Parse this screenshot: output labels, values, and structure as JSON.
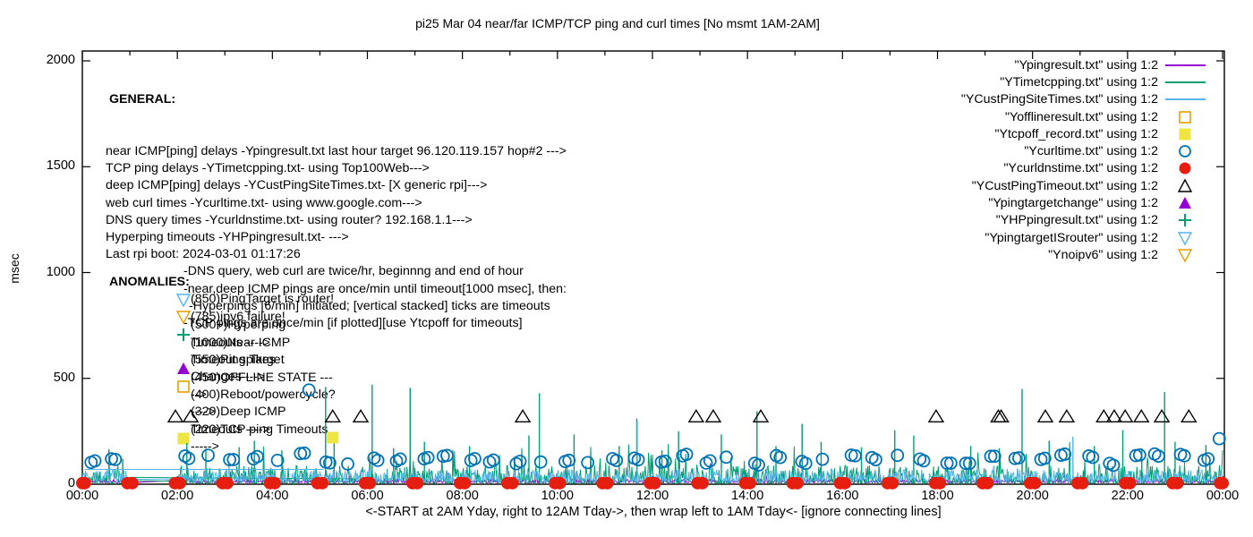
{
  "title": "pi25 Mar 04  near/far ICMP/TCP ping and curl times [No msmt 1AM-2AM]",
  "ylabel": "msec",
  "bottom_note": "<-START at 2AM Yday, right to 12AM Tday->, then wrap left to 1AM Tday<- [ignore connecting lines]",
  "general": {
    "heading": "GENERAL:",
    "lines": [
      {
        "indent": 0,
        "text": "near ICMP[ping] delays -Ypingresult.txt last hour target 96.120.119.157 hop#2 --->"
      },
      {
        "indent": 0,
        "text": "TCP ping delays -YTimetcpping.txt- using Top100Web--->"
      },
      {
        "indent": 0,
        "text": "deep ICMP[ping] delays -YCustPingSiteTimes.txt- [X generic rpi]--->"
      },
      {
        "indent": 0,
        "text": "web curl times -Ycurltime.txt- using www.google.com--->"
      },
      {
        "indent": 0,
        "text": "DNS query times -Ycurldnstime.txt- using router? 192.168.1.1--->"
      },
      {
        "indent": 0,
        "text": "Hyperping timeouts -YHPpingresult.txt- --->"
      },
      {
        "indent": 0,
        "text": "Last rpi boot: 2024-03-01 01:17:26"
      },
      {
        "indent": 1,
        "text": "-DNS query, web curl are twice/hr, beginnng and end of hour"
      },
      {
        "indent": 1,
        "text": "-near,deep ICMP pings are once/min until timeout[1000 msec], then:"
      },
      {
        "indent": 2,
        "text": "-Hyperpings [6/min] initiated; [vertical stacked] ticks are timeouts"
      },
      {
        "indent": 1,
        "text": "-TCP pings are once/min [if plotted][use Ytcpoff for timeouts]"
      }
    ]
  },
  "anomalies": {
    "heading": "ANOMALIES:",
    "rows": [
      {
        "marker": "triangle-down-open",
        "color": "#56B4E9",
        "text": "(850)PingTarget is router!"
      },
      {
        "marker": "triangle-down-open",
        "color": "#E69F00",
        "text": "(785)ipv6 failure!"
      },
      {
        "marker": "plus",
        "color": "#009E73",
        "text": "(500+)Hyperping Timeouts ---->"
      },
      {
        "marker": "none",
        "color": "",
        "text": "(1000)Near ICMP Timeout spikes"
      },
      {
        "marker": "triangle-up-filled",
        "color": "#9400D3",
        "text": "(550)Ping Target Changes --->"
      },
      {
        "marker": "square-open",
        "color": "#E69F00",
        "text": "(450)OFFLINE STATE ----->"
      },
      {
        "marker": "none",
        "color": "",
        "text": "(400)Reboot/powercycle? ---->"
      },
      {
        "marker": "none",
        "color": "",
        "text": "(320)Deep ICMP Timeouts ---->"
      },
      {
        "marker": "square-filled",
        "color": "#F0E442",
        "text": "(220)TCP ping Timeouts ----->"
      }
    ]
  },
  "legend": {
    "entries": [
      {
        "label": "\"Ypingresult.txt\" using 1:2",
        "key": "line",
        "color": "#9400D3"
      },
      {
        "label": "\"YTimetcpping.txt\" using 1:2",
        "key": "line",
        "color": "#009E73"
      },
      {
        "label": "\"YCustPingSiteTimes.txt\" using 1:2",
        "key": "line",
        "color": "#56B4E9"
      },
      {
        "label": "\"Yofflineresult.txt\" using 1:2",
        "key": "square-open",
        "color": "#E69F00"
      },
      {
        "label": "\"Ytcpoff_record.txt\" using 1:2",
        "key": "square-filled",
        "color": "#F0E442"
      },
      {
        "label": "\"Ycurltime.txt\" using 1:2",
        "key": "circle-open",
        "color": "#0072B2"
      },
      {
        "label": "\"Ycurldnstime.txt\" using 1:2",
        "key": "circle-filled",
        "color": "#E51E10"
      },
      {
        "label": "\"YCustPingTimeout.txt\" using 1:2",
        "key": "triangle-up-open",
        "color": "#000000"
      },
      {
        "label": "\"Ypingtargetchange\" using 1:2",
        "key": "triangle-up-filled",
        "color": "#9400D3"
      },
      {
        "label": "\"YHPpingresult.txt\" using 1:2",
        "key": "plus",
        "color": "#009E73"
      },
      {
        "label": "\"YpingtargetISrouter\" using 1:2",
        "key": "triangle-down-open",
        "color": "#56B4E9"
      },
      {
        "label": "\"Ynoipv6\" using 1:2",
        "key": "triangle-down-open",
        "color": "#E69F00"
      }
    ]
  },
  "axes": {
    "ylim": [
      0,
      2000
    ],
    "xlim_hours": [
      0,
      24
    ],
    "y_ticks": [
      0,
      500,
      1000,
      1500,
      2000
    ],
    "x_ticks": [
      {
        "h": 0,
        "label": "00:00"
      },
      {
        "h": 2,
        "label": "02:00"
      },
      {
        "h": 4,
        "label": "04:00"
      },
      {
        "h": 6,
        "label": "06:00"
      },
      {
        "h": 8,
        "label": "08:00"
      },
      {
        "h": 10,
        "label": "10:00"
      },
      {
        "h": 12,
        "label": "12:00"
      },
      {
        "h": 14,
        "label": "14:00"
      },
      {
        "h": 16,
        "label": "16:00"
      },
      {
        "h": 18,
        "label": "18:00"
      },
      {
        "h": 20,
        "label": "20:00"
      },
      {
        "h": 22,
        "label": "22:00"
      },
      {
        "h": 24,
        "label": "00:00"
      }
    ],
    "minor_x_every_hours": 1
  },
  "chart_data": {
    "type": "line",
    "x_unit": "time of day (hours, 00:00-24:00)",
    "y_unit": "msec",
    "measurement_gap_hours": [
      1,
      2
    ],
    "series": [
      {
        "name": "Ypingresult.txt",
        "meaning": "near ICMP ping delays",
        "style": "line",
        "color": "#9400D3",
        "noise": {
          "seed": 11,
          "base": 7,
          "spread": 16,
          "pow": 1.6,
          "spike_chance": 0.012,
          "spike_max": 30
        }
      },
      {
        "name": "YTimetcpping.txt",
        "meaning": "TCP ping delays",
        "style": "line",
        "color": "#009E73",
        "noise": {
          "seed": 22,
          "base": 4,
          "spread": 85,
          "pow": 2.6,
          "spike_chance": 0.05,
          "spike_max": 130
        },
        "tall_spikes": [
          [
            0.56,
            165
          ],
          [
            0.85,
            120
          ],
          [
            2.2,
            195
          ],
          [
            2.6,
            170
          ],
          [
            3.3,
            175
          ],
          [
            3.62,
            205
          ],
          [
            4.2,
            160
          ],
          [
            5.12,
            460
          ],
          [
            5.3,
            235
          ],
          [
            6.1,
            470
          ],
          [
            6.55,
            170
          ],
          [
            6.9,
            455
          ],
          [
            7.2,
            200
          ],
          [
            8.15,
            180
          ],
          [
            9.4,
            230
          ],
          [
            9.62,
            430
          ],
          [
            10.35,
            235
          ],
          [
            11.3,
            180
          ],
          [
            11.67,
            310
          ],
          [
            12.2,
            160
          ],
          [
            12.55,
            250
          ],
          [
            13.45,
            235
          ],
          [
            14.2,
            345
          ],
          [
            14.6,
            180
          ],
          [
            15.15,
            285
          ],
          [
            15.55,
            200
          ],
          [
            16.4,
            175
          ],
          [
            17.1,
            255
          ],
          [
            17.5,
            230
          ],
          [
            18.7,
            180
          ],
          [
            19.3,
            170
          ],
          [
            19.78,
            450
          ],
          [
            20.35,
            205
          ],
          [
            21.3,
            180
          ],
          [
            21.9,
            255
          ],
          [
            22.3,
            170
          ],
          [
            22.78,
            435
          ],
          [
            23.0,
            200
          ],
          [
            23.65,
            185
          ]
        ],
        "connector": [
          [
            1.0,
            32
          ],
          [
            5.6,
            26
          ]
        ]
      },
      {
        "name": "YCustPingSiteTimes.txt",
        "meaning": "deep ICMP ping delays",
        "style": "line",
        "color": "#56B4E9",
        "noise": {
          "seed": 33,
          "base": 10,
          "spread": 58,
          "pow": 1.9,
          "spike_chance": 0.02,
          "spike_max": 45
        },
        "tall_spikes": [
          [
            11.68,
            300
          ],
          [
            20.85,
            225
          ]
        ],
        "connector": [
          [
            0.05,
            70
          ],
          [
            5.08,
            70
          ]
        ]
      },
      {
        "name": "Ycurltime.txt",
        "meaning": "web curl times, twice/hr",
        "style": "circle-open",
        "color": "#0072B2",
        "pattern": {
          "seed": 44,
          "per_hour_offsets": [
            0.1,
            0.55
          ],
          "pair_dx": 0.08,
          "value_min": 95,
          "value_max": 145,
          "skip_hours": [
            1
          ]
        },
        "outlier_points": [
          [
            4.77,
            445
          ],
          [
            23.93,
            215
          ]
        ]
      },
      {
        "name": "Ycurldnstime.txt",
        "meaning": "DNS query times, twice/hr",
        "style": "circle-filled",
        "color": "#E51E10",
        "pattern": {
          "hours_start": 0,
          "hours_end": 24,
          "pair_dx": 0.05,
          "value": 5
        }
      },
      {
        "name": "YCustPingTimeout.txt",
        "meaning": "deep ICMP timeouts plotted at 320",
        "style": "triangle-up-open",
        "color": "#000000",
        "value": 320,
        "hours": [
          1.96,
          2.28,
          5.27,
          5.86,
          9.27,
          12.92,
          13.28,
          14.28,
          17.97,
          19.28,
          19.34,
          20.27,
          20.72,
          21.5,
          21.72,
          21.95,
          22.29,
          22.72,
          23.29
        ]
      },
      {
        "name": "Ytcpoff_record.txt",
        "meaning": "TCP ping timeouts plotted at 220",
        "style": "square-filled",
        "color": "#F0E442",
        "value": 220,
        "hours": [
          5.27
        ]
      },
      {
        "name": "Yofflineresult.txt",
        "meaning": "offline state plotted at 450",
        "style": "square-open",
        "color": "#E69F00",
        "value": 450,
        "hours": []
      },
      {
        "name": "YHPpingresult.txt",
        "meaning": "hyperping timeouts",
        "style": "plus",
        "color": "#009E73",
        "value": 500,
        "hours": []
      },
      {
        "name": "Ypingtargetchange",
        "meaning": "ping target changes plotted at 550",
        "style": "triangle-up-filled",
        "color": "#9400D3",
        "value": 550,
        "hours": []
      },
      {
        "name": "YpingtargetISrouter",
        "meaning": "ping target is router plotted at 850",
        "style": "triangle-down-open",
        "color": "#56B4E9",
        "value": 850,
        "hours": []
      },
      {
        "name": "Ynoipv6",
        "meaning": "ipv6 failure plotted at 785",
        "style": "triangle-down-open",
        "color": "#E69F00",
        "value": 785,
        "hours": []
      }
    ]
  }
}
